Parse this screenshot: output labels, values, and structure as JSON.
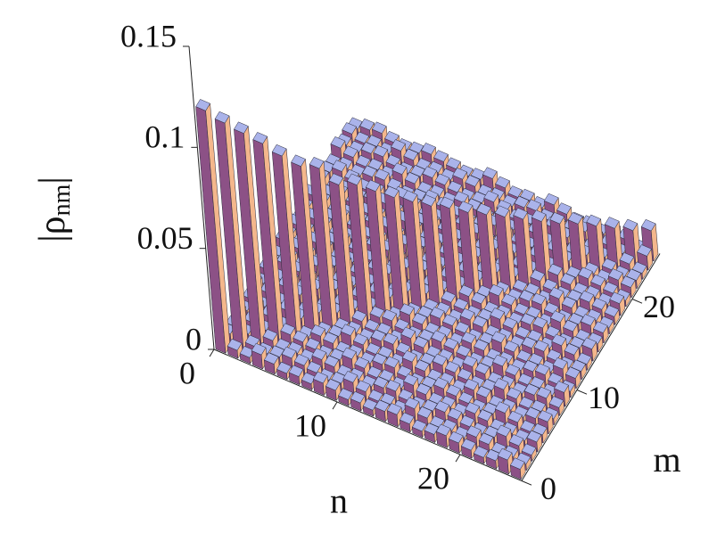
{
  "chart_data": {
    "type": "bar3d",
    "xlabel": "n",
    "ylabel": "m",
    "zlabel": [
      "|ρ",
      "nm",
      "|"
    ],
    "xlim": [
      0,
      25
    ],
    "ylim": [
      0,
      25
    ],
    "zlim": [
      0,
      0.15
    ],
    "xticks": [
      0,
      10,
      20
    ],
    "yticks": [
      0,
      10,
      20
    ],
    "zticks": [
      0,
      0.05,
      0.1,
      0.15
    ],
    "colors": {
      "top": "#aab3ea",
      "front": "#8c5186",
      "side": "#f4b78c"
    },
    "values": [
      [
        0.12,
        0.005,
        0.004,
        0.006,
        0.003,
        0.004,
        0.007,
        0.003,
        0.005,
        0.004,
        0.003,
        0.006,
        0.004,
        0.005,
        0.003,
        0.004,
        0.006,
        0.003,
        0.005,
        0.004,
        0.003,
        0.007,
        0.004,
        0.005,
        0.003
      ],
      [
        0.004,
        0.112,
        0.003,
        0.004,
        0.007,
        0.003,
        0.005,
        0.004,
        0.003,
        0.006,
        0.004,
        0.005,
        0.003,
        0.004,
        0.006,
        0.003,
        0.005,
        0.004,
        0.003,
        0.007,
        0.004,
        0.005,
        0.003,
        0.003,
        0.005
      ],
      [
        0.003,
        0.004,
        0.105,
        0.003,
        0.005,
        0.004,
        0.003,
        0.006,
        0.004,
        0.005,
        0.003,
        0.004,
        0.006,
        0.003,
        0.005,
        0.004,
        0.003,
        0.007,
        0.004,
        0.005,
        0.003,
        0.003,
        0.005,
        0.004,
        0.006
      ],
      [
        0.007,
        0.003,
        0.005,
        0.098,
        0.003,
        0.006,
        0.004,
        0.005,
        0.003,
        0.004,
        0.006,
        0.003,
        0.005,
        0.004,
        0.003,
        0.007,
        0.004,
        0.005,
        0.003,
        0.003,
        0.005,
        0.004,
        0.006,
        0.003,
        0.004
      ],
      [
        0.005,
        0.004,
        0.003,
        0.006,
        0.09,
        0.005,
        0.003,
        0.004,
        0.006,
        0.003,
        0.005,
        0.004,
        0.003,
        0.007,
        0.004,
        0.005,
        0.003,
        0.003,
        0.005,
        0.004,
        0.006,
        0.003,
        0.004,
        0.007,
        0.003
      ],
      [
        0.003,
        0.006,
        0.004,
        0.005,
        0.003,
        0.083,
        0.006,
        0.003,
        0.005,
        0.004,
        0.003,
        0.007,
        0.004,
        0.005,
        0.003,
        0.003,
        0.005,
        0.004,
        0.006,
        0.003,
        0.004,
        0.007,
        0.003,
        0.005,
        0.004
      ],
      [
        0.004,
        0.005,
        0.003,
        0.004,
        0.006,
        0.003,
        0.08,
        0.004,
        0.003,
        0.007,
        0.004,
        0.005,
        0.003,
        0.003,
        0.005,
        0.004,
        0.006,
        0.003,
        0.004,
        0.007,
        0.003,
        0.005,
        0.004,
        0.003,
        0.006
      ],
      [
        0.003,
        0.004,
        0.006,
        0.003,
        0.005,
        0.004,
        0.003,
        0.07,
        0.004,
        0.005,
        0.003,
        0.003,
        0.005,
        0.004,
        0.006,
        0.003,
        0.004,
        0.007,
        0.003,
        0.005,
        0.004,
        0.003,
        0.006,
        0.004,
        0.005
      ],
      [
        0.006,
        0.003,
        0.005,
        0.004,
        0.003,
        0.007,
        0.004,
        0.005,
        0.068,
        0.003,
        0.005,
        0.004,
        0.006,
        0.003,
        0.004,
        0.007,
        0.003,
        0.005,
        0.004,
        0.003,
        0.006,
        0.004,
        0.005,
        0.003,
        0.004
      ],
      [
        0.005,
        0.004,
        0.003,
        0.007,
        0.004,
        0.005,
        0.003,
        0.003,
        0.005,
        0.063,
        0.006,
        0.003,
        0.004,
        0.007,
        0.003,
        0.005,
        0.004,
        0.003,
        0.006,
        0.004,
        0.005,
        0.003,
        0.004,
        0.006,
        0.003
      ],
      [
        0.003,
        0.007,
        0.004,
        0.005,
        0.003,
        0.003,
        0.005,
        0.004,
        0.006,
        0.003,
        0.058,
        0.007,
        0.003,
        0.005,
        0.004,
        0.003,
        0.006,
        0.004,
        0.005,
        0.003,
        0.004,
        0.006,
        0.003,
        0.005,
        0.004
      ],
      [
        0.004,
        0.005,
        0.003,
        0.003,
        0.005,
        0.004,
        0.006,
        0.003,
        0.004,
        0.007,
        0.003,
        0.054,
        0.004,
        0.003,
        0.006,
        0.004,
        0.005,
        0.003,
        0.004,
        0.006,
        0.003,
        0.005,
        0.004,
        0.003,
        0.007
      ],
      [
        0.003,
        0.003,
        0.005,
        0.004,
        0.006,
        0.003,
        0.004,
        0.007,
        0.003,
        0.005,
        0.004,
        0.003,
        0.05,
        0.004,
        0.005,
        0.003,
        0.004,
        0.006,
        0.003,
        0.005,
        0.004,
        0.003,
        0.007,
        0.004,
        0.005
      ],
      [
        0.005,
        0.004,
        0.006,
        0.003,
        0.004,
        0.007,
        0.003,
        0.005,
        0.004,
        0.003,
        0.006,
        0.004,
        0.005,
        0.047,
        0.004,
        0.006,
        0.003,
        0.005,
        0.004,
        0.003,
        0.007,
        0.004,
        0.005,
        0.003,
        0.003
      ],
      [
        0.006,
        0.003,
        0.004,
        0.007,
        0.003,
        0.005,
        0.004,
        0.003,
        0.006,
        0.004,
        0.005,
        0.003,
        0.004,
        0.006,
        0.043,
        0.005,
        0.004,
        0.003,
        0.007,
        0.004,
        0.005,
        0.003,
        0.003,
        0.005,
        0.004
      ],
      [
        0.004,
        0.007,
        0.003,
        0.005,
        0.004,
        0.003,
        0.006,
        0.004,
        0.005,
        0.003,
        0.004,
        0.006,
        0.003,
        0.005,
        0.004,
        0.04,
        0.007,
        0.004,
        0.005,
        0.003,
        0.003,
        0.005,
        0.004,
        0.006,
        0.003
      ],
      [
        0.003,
        0.005,
        0.004,
        0.003,
        0.006,
        0.004,
        0.005,
        0.003,
        0.004,
        0.006,
        0.003,
        0.005,
        0.004,
        0.003,
        0.007,
        0.004,
        0.037,
        0.003,
        0.003,
        0.005,
        0.004,
        0.006,
        0.003,
        0.004,
        0.007
      ],
      [
        0.004,
        0.003,
        0.006,
        0.004,
        0.005,
        0.003,
        0.004,
        0.006,
        0.003,
        0.005,
        0.004,
        0.003,
        0.007,
        0.004,
        0.005,
        0.003,
        0.003,
        0.034,
        0.004,
        0.006,
        0.003,
        0.004,
        0.007,
        0.003,
        0.005
      ],
      [
        0.006,
        0.004,
        0.005,
        0.003,
        0.004,
        0.006,
        0.003,
        0.005,
        0.004,
        0.003,
        0.007,
        0.004,
        0.005,
        0.003,
        0.003,
        0.005,
        0.004,
        0.006,
        0.031,
        0.004,
        0.007,
        0.003,
        0.005,
        0.004,
        0.003
      ],
      [
        0.005,
        0.003,
        0.004,
        0.006,
        0.003,
        0.005,
        0.004,
        0.003,
        0.007,
        0.004,
        0.005,
        0.003,
        0.003,
        0.005,
        0.004,
        0.006,
        0.003,
        0.004,
        0.007,
        0.028,
        0.005,
        0.004,
        0.003,
        0.006,
        0.004
      ],
      [
        0.004,
        0.006,
        0.003,
        0.005,
        0.004,
        0.003,
        0.007,
        0.004,
        0.005,
        0.003,
        0.003,
        0.005,
        0.004,
        0.006,
        0.003,
        0.004,
        0.007,
        0.003,
        0.005,
        0.004,
        0.026,
        0.006,
        0.004,
        0.005,
        0.003
      ],
      [
        0.003,
        0.005,
        0.004,
        0.003,
        0.007,
        0.004,
        0.005,
        0.003,
        0.003,
        0.005,
        0.004,
        0.006,
        0.003,
        0.004,
        0.007,
        0.003,
        0.005,
        0.004,
        0.003,
        0.006,
        0.004,
        0.023,
        0.003,
        0.004,
        0.006
      ],
      [
        0.004,
        0.003,
        0.007,
        0.004,
        0.005,
        0.003,
        0.003,
        0.005,
        0.004,
        0.006,
        0.003,
        0.004,
        0.007,
        0.003,
        0.005,
        0.004,
        0.003,
        0.006,
        0.004,
        0.005,
        0.003,
        0.004,
        0.02,
        0.003,
        0.005
      ],
      [
        0.007,
        0.004,
        0.005,
        0.003,
        0.003,
        0.005,
        0.004,
        0.006,
        0.003,
        0.004,
        0.007,
        0.003,
        0.005,
        0.004,
        0.003,
        0.006,
        0.004,
        0.005,
        0.003,
        0.004,
        0.006,
        0.003,
        0.005,
        0.017,
        0.003
      ],
      [
        0.005,
        0.003,
        0.003,
        0.005,
        0.004,
        0.006,
        0.003,
        0.004,
        0.007,
        0.003,
        0.005,
        0.004,
        0.003,
        0.006,
        0.004,
        0.005,
        0.003,
        0.004,
        0.006,
        0.003,
        0.005,
        0.004,
        0.003,
        0.007,
        0.015
      ]
    ]
  }
}
